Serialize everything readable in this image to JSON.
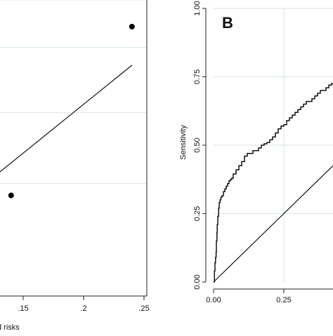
{
  "chart_data": [
    {
      "type": "scatter",
      "panel_label": "",
      "xlabel": "d risks",
      "ylabel": "",
      "xlim": [
        0.0,
        0.255
      ],
      "ylim": [
        0.0,
        1.0
      ],
      "x_ticks": [
        0.15,
        0.2,
        0.25
      ],
      "x_tick_labels": [
        ".15",
        ".2",
        ".25"
      ],
      "y_gridlines": [
        0.38,
        0.62,
        0.84,
        1.0
      ],
      "grid": true,
      "series": [
        {
          "kind": "points",
          "x": [
            0.24,
            0.14
          ],
          "y": [
            0.91,
            0.34
          ]
        },
        {
          "kind": "fit-line",
          "x": [
            0.0,
            0.24
          ],
          "y": [
            0.39,
            0.75
          ]
        }
      ]
    },
    {
      "type": "line",
      "panel_label": "B",
      "xlabel": "",
      "ylabel": "Sensitivity",
      "xlim": [
        0.0,
        0.44
      ],
      "ylim": [
        0.0,
        1.0
      ],
      "x_ticks": [
        0.0,
        0.25
      ],
      "x_tick_labels": [
        "0.00",
        "0.25"
      ],
      "y_ticks": [
        0.0,
        0.25,
        0.5,
        0.75,
        1.0
      ],
      "y_tick_labels": [
        "0.00",
        "0.25",
        "0.50",
        "0.75",
        "1.00"
      ],
      "grid": true,
      "series": [
        {
          "kind": "roc-curve",
          "x": [
            0.0,
            0.003,
            0.005,
            0.007,
            0.009,
            0.01,
            0.012,
            0.013,
            0.015,
            0.018,
            0.02,
            0.023,
            0.026,
            0.03,
            0.035,
            0.04,
            0.045,
            0.05,
            0.055,
            0.06,
            0.065,
            0.07,
            0.08,
            0.09,
            0.1,
            0.11,
            0.12,
            0.13,
            0.14,
            0.15,
            0.16,
            0.17,
            0.18,
            0.19,
            0.2,
            0.21,
            0.22,
            0.23,
            0.24,
            0.25,
            0.26,
            0.27,
            0.28,
            0.29,
            0.3,
            0.31,
            0.32,
            0.33,
            0.34,
            0.35,
            0.36,
            0.37,
            0.38,
            0.39,
            0.4,
            0.41,
            0.42,
            0.43
          ],
          "y": [
            0.0,
            0.04,
            0.07,
            0.09,
            0.11,
            0.15,
            0.18,
            0.21,
            0.24,
            0.27,
            0.29,
            0.3,
            0.31,
            0.315,
            0.33,
            0.34,
            0.35,
            0.36,
            0.37,
            0.375,
            0.38,
            0.395,
            0.41,
            0.425,
            0.44,
            0.46,
            0.47,
            0.47,
            0.48,
            0.48,
            0.49,
            0.5,
            0.505,
            0.51,
            0.52,
            0.53,
            0.545,
            0.56,
            0.57,
            0.575,
            0.59,
            0.6,
            0.61,
            0.62,
            0.63,
            0.64,
            0.65,
            0.66,
            0.66,
            0.67,
            0.68,
            0.69,
            0.7,
            0.7,
            0.71,
            0.72,
            0.725,
            0.73
          ]
        },
        {
          "kind": "reference-diagonal",
          "x": [
            0.0,
            0.44
          ],
          "y": [
            0.0,
            0.44
          ]
        }
      ]
    }
  ]
}
